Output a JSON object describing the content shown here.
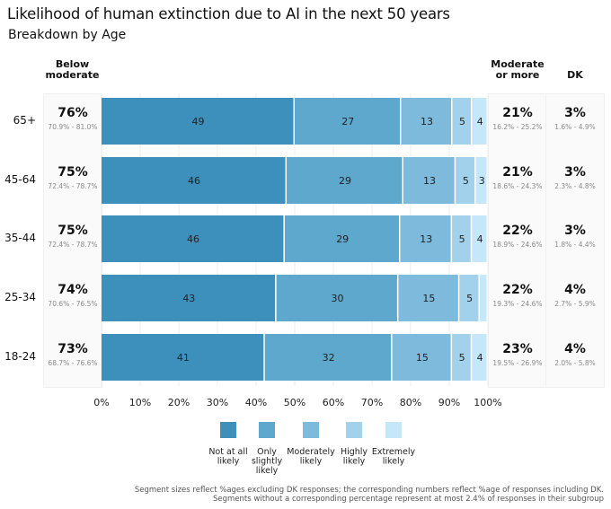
{
  "chart_data": {
    "type": "bar",
    "orientation": "horizontal-stacked-100",
    "title": "Likelihood of human extinction due to AI in the next 50 years",
    "subtitle": "Breakdown by Age",
    "categories": [
      "65+",
      "45-64",
      "35-44",
      "25-34",
      "18-24"
    ],
    "series": [
      {
        "name": "Not at all likely",
        "color": "#3d8fbc",
        "values": [
          49,
          46,
          46,
          43,
          41
        ],
        "labels": [
          "49",
          "46",
          "46",
          "43",
          "41"
        ]
      },
      {
        "name": "Only slightly likely",
        "color": "#5da8cc",
        "values": [
          27,
          29,
          29,
          30,
          32
        ],
        "labels": [
          "27",
          "29",
          "29",
          "30",
          "32"
        ]
      },
      {
        "name": "Moderately likely",
        "color": "#7dbadb",
        "values": [
          13,
          13,
          13,
          15,
          15
        ],
        "labels": [
          "13",
          "13",
          "13",
          "15",
          "15"
        ]
      },
      {
        "name": "Highly likely",
        "color": "#a2d2eb",
        "values": [
          5,
          5,
          5,
          5,
          5
        ],
        "labels": [
          "5",
          "5",
          "5",
          "5",
          "5"
        ]
      },
      {
        "name": "Extremely likely",
        "color": "#c4e7fa",
        "values": [
          4,
          3,
          4,
          2,
          4
        ],
        "labels": [
          "4",
          "3",
          "4",
          "",
          "4"
        ]
      }
    ],
    "segment_widths_exclude_dk": true,
    "xlim": [
      0,
      100
    ],
    "x_ticks": [
      "0%",
      "10%",
      "20%",
      "30%",
      "40%",
      "50%",
      "60%",
      "70%",
      "80%",
      "90%",
      "100%"
    ],
    "grid": true,
    "legend": {
      "position": "bottom-center",
      "entries": [
        "Not at all\nlikely",
        "Only\nslightly\nlikely",
        "Moderately\nlikely",
        "Highly\nlikely",
        "Extremely\nlikely"
      ]
    },
    "summary_columns": {
      "below_moderate": {
        "header": [
          "Below",
          "moderate"
        ],
        "values": [
          "76%",
          "75%",
          "75%",
          "74%",
          "73%"
        ],
        "ci": [
          "70.9% - 81.0%",
          "72.4% - 78.7%",
          "72.4% - 78.7%",
          "70.6% - 76.5%",
          "68.7% - 76.6%"
        ]
      },
      "moderate_or_more": {
        "header": [
          "Moderate",
          "or more"
        ],
        "values": [
          "21%",
          "21%",
          "22%",
          "22%",
          "23%"
        ],
        "ci": [
          "16.2% - 25.2%",
          "18.6% - 24.3%",
          "18.9% - 24.6%",
          "19.3% - 24.6%",
          "19.5% - 26.9%"
        ]
      },
      "dk": {
        "header": [
          "DK"
        ],
        "values": [
          "3%",
          "3%",
          "3%",
          "4%",
          "4%"
        ],
        "ci": [
          "1.6% - 4.9%",
          "2.3% - 4.8%",
          "1.8% - 4.4%",
          "2.7% - 5.9%",
          "2.0% - 5.8%"
        ]
      }
    },
    "footnote": [
      "Segment sizes reflect %ages excluding DK responses; the corresponding numbers reflect %age of responses including DK.",
      "Segments without a corresponding percentage represent at most 2.4% of responses in their subgroup"
    ]
  }
}
